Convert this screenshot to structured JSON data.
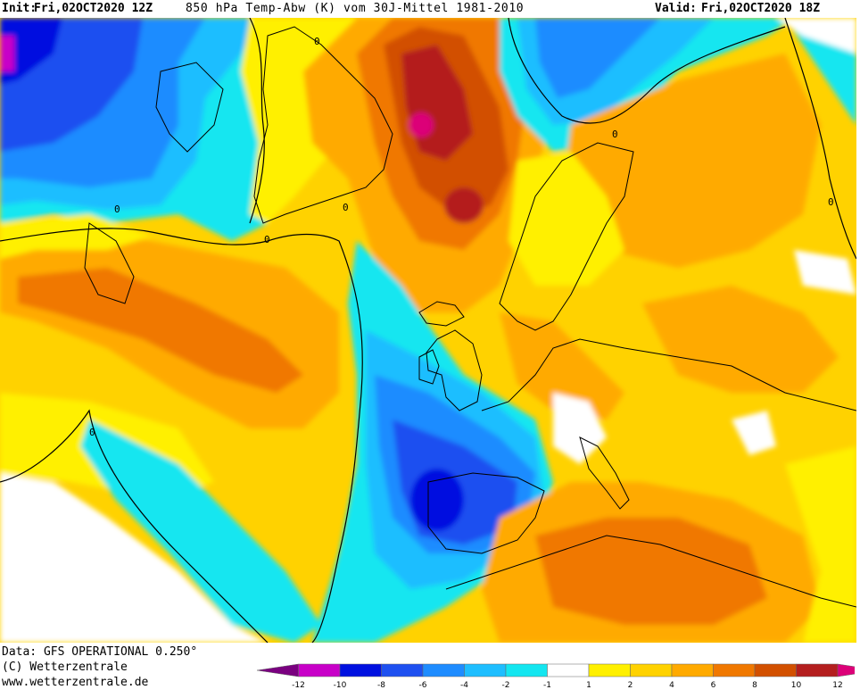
{
  "header": {
    "init_label": "Init:",
    "init_value": "Fri,02OCT2020 12Z",
    "title": "850 hPa Temp-Abw (K) vom 30J-Mittel 1981-2010",
    "valid_label": "Valid:",
    "valid_value": "Fri,02OCT2020 18Z"
  },
  "map": {
    "contour_label": "0"
  },
  "footer": {
    "data_line": "Data: GFS OPERATIONAL 0.250°",
    "copyright_line": "(C) Wetterzentrale",
    "url_line": "www.wetterzentrale.de"
  },
  "legend": {
    "ticks": [
      "-12",
      "-10",
      "-8",
      "-6",
      "-4",
      "-2",
      "-1",
      "1",
      "2",
      "4",
      "6",
      "8",
      "10",
      "12"
    ],
    "colors": [
      "#7a0080",
      "#c800c8",
      "#0010e0",
      "#1e50f0",
      "#1e8cff",
      "#1ebeff",
      "#14e6f0",
      "#ffffff",
      "#fff000",
      "#ffd200",
      "#ffaa00",
      "#f07800",
      "#d25000",
      "#b41e1e",
      "#dc0078"
    ]
  }
}
